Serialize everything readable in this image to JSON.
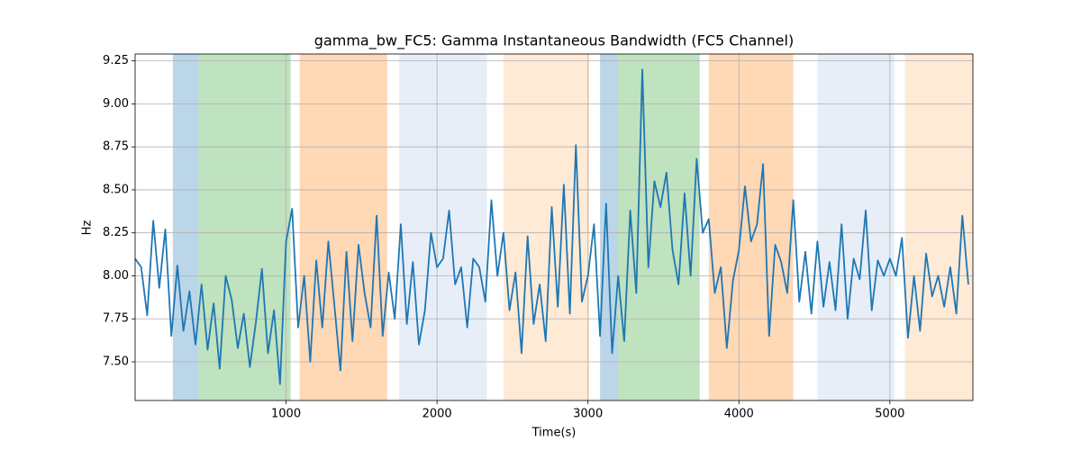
{
  "chart_data": {
    "type": "line",
    "title": "gamma_bw_FC5: Gamma Instantaneous Bandwidth (FC5 Channel)",
    "x_label": "Time(s)",
    "y_label": "Hz",
    "xlim": [
      0,
      5550
    ],
    "ylim": [
      7.275,
      9.29
    ],
    "xticks": [
      1000,
      2000,
      3000,
      4000,
      5000
    ],
    "yticks": [
      {
        "value": 7.5,
        "label": "7.50"
      },
      7.75,
      {
        "value": 8,
        "label": "8.00"
      },
      8.25,
      {
        "value": 8.5,
        "label": "8.50"
      },
      8.75,
      {
        "value": 9,
        "label": "9.00"
      },
      9.25
    ],
    "grid": true,
    "spans": [
      {
        "x": [
          250,
          420
        ],
        "color": "#1f77b4",
        "alpha": 0.3
      },
      {
        "x": [
          420,
          1030
        ],
        "color": "#2ca02c",
        "alpha": 0.3
      },
      {
        "x": [
          1090,
          1670
        ],
        "color": "#ff7f0e",
        "alpha": 0.3
      },
      {
        "x": [
          1750,
          2330
        ],
        "color": "#aec7e8",
        "alpha": 0.3
      },
      {
        "x": [
          2440,
          3010
        ],
        "color": "#ffbb78",
        "alpha": 0.3
      },
      {
        "x": [
          3080,
          3200
        ],
        "color": "#1f77b4",
        "alpha": 0.3
      },
      {
        "x": [
          3200,
          3740
        ],
        "color": "#2ca02c",
        "alpha": 0.3
      },
      {
        "x": [
          3800,
          4360
        ],
        "color": "#ff7f0e",
        "alpha": 0.3
      },
      {
        "x": [
          4520,
          5030
        ],
        "color": "#aec7e8",
        "alpha": 0.3
      },
      {
        "x": [
          5100,
          5550
        ],
        "color": "#ffbb78",
        "alpha": 0.3
      }
    ],
    "x": [
      0,
      40,
      80,
      120,
      160,
      200,
      240,
      280,
      320,
      360,
      400,
      440,
      480,
      520,
      560,
      600,
      640,
      680,
      720,
      760,
      800,
      840,
      880,
      920,
      960,
      1000,
      1040,
      1080,
      1120,
      1160,
      1200,
      1240,
      1280,
      1320,
      1360,
      1400,
      1440,
      1480,
      1520,
      1560,
      1600,
      1640,
      1680,
      1720,
      1760,
      1800,
      1840,
      1880,
      1920,
      1960,
      2000,
      2040,
      2080,
      2120,
      2160,
      2200,
      2240,
      2280,
      2320,
      2360,
      2400,
      2440,
      2480,
      2520,
      2560,
      2600,
      2640,
      2680,
      2720,
      2760,
      2800,
      2840,
      2880,
      2920,
      2960,
      3000,
      3040,
      3080,
      3120,
      3160,
      3200,
      3240,
      3280,
      3320,
      3360,
      3400,
      3440,
      3480,
      3520,
      3560,
      3600,
      3640,
      3680,
      3720,
      3760,
      3800,
      3840,
      3880,
      3920,
      3960,
      4000,
      4040,
      4080,
      4120,
      4160,
      4200,
      4240,
      4280,
      4320,
      4360,
      4400,
      4440,
      4480,
      4520,
      4560,
      4600,
      4640,
      4680,
      4720,
      4760,
      4800,
      4840,
      4880,
      4920,
      4960,
      5000,
      5040,
      5080,
      5120,
      5160,
      5200,
      5240,
      5280,
      5320,
      5360,
      5400,
      5440,
      5480,
      5520
    ],
    "series": [
      {
        "color": "#1f77b4",
        "values": [
          8.1,
          8.05,
          7.77,
          8.32,
          7.93,
          8.27,
          7.65,
          8.06,
          7.68,
          7.91,
          7.6,
          7.95,
          7.57,
          7.84,
          7.46,
          8.0,
          7.86,
          7.58,
          7.78,
          7.47,
          7.73,
          8.04,
          7.55,
          7.8,
          7.37,
          8.2,
          8.39,
          7.7,
          8.0,
          7.5,
          8.09,
          7.7,
          8.2,
          7.83,
          7.45,
          8.14,
          7.62,
          8.18,
          7.9,
          7.7,
          8.35,
          7.65,
          8.02,
          7.75,
          8.3,
          7.72,
          8.08,
          7.6,
          7.8,
          8.25,
          8.05,
          8.1,
          8.38,
          7.95,
          8.05,
          7.7,
          8.1,
          8.05,
          7.85,
          8.44,
          8.0,
          8.25,
          7.8,
          8.02,
          7.55,
          8.23,
          7.72,
          7.95,
          7.62,
          8.4,
          7.82,
          8.53,
          7.78,
          8.76,
          7.85,
          8.0,
          8.3,
          7.65,
          8.42,
          7.55,
          8.0,
          7.62,
          8.38,
          7.9,
          9.2,
          8.05,
          8.55,
          8.4,
          8.6,
          8.15,
          7.95,
          8.48,
          8.0,
          8.68,
          8.25,
          8.33,
          7.9,
          8.05,
          7.58,
          7.97,
          8.15,
          8.52,
          8.2,
          8.3,
          8.65,
          7.65,
          8.18,
          8.08,
          7.9,
          8.44,
          7.85,
          8.14,
          7.78,
          8.2,
          7.82,
          8.08,
          7.8,
          8.3,
          7.75,
          8.1,
          7.98,
          8.38,
          7.8,
          8.09,
          8.0,
          8.1,
          8.0,
          8.22,
          7.64,
          8.0,
          7.68,
          8.13,
          7.88,
          8.0,
          7.82,
          8.05,
          7.78,
          8.35,
          7.95
        ]
      }
    ]
  }
}
